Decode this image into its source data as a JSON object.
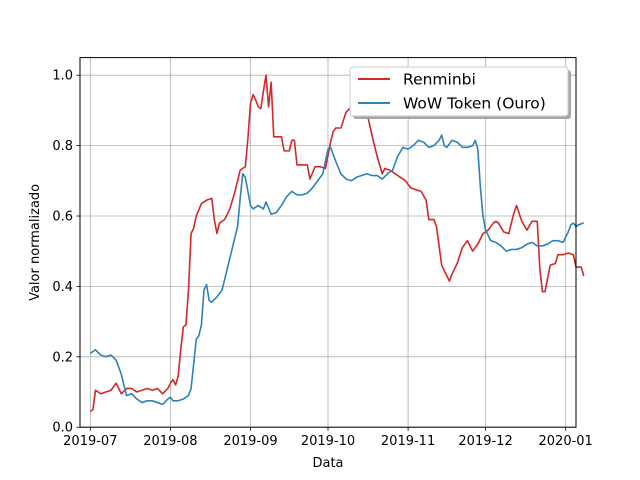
{
  "chart_data": {
    "type": "line",
    "title": "",
    "xlabel": "Data",
    "ylabel": "Valor normalizado",
    "x_range": [
      "2019-06-27",
      "2020-01-05"
    ],
    "ylim": [
      0.0,
      1.05
    ],
    "x_tick_labels": [
      "2019-07",
      "2019-08",
      "2019-09",
      "2019-10",
      "2019-11",
      "2019-12",
      "2020-01"
    ],
    "y_tick_labels": [
      "0.0",
      "0.2",
      "0.4",
      "0.6",
      "0.8",
      "1.0"
    ],
    "grid": true,
    "legend_position": "top-right",
    "series": [
      {
        "name": "Renminbi",
        "color": "#d62728",
        "points": [
          [
            "2019-07-01",
            0.045
          ],
          [
            "2019-07-02",
            0.05
          ],
          [
            "2019-07-03",
            0.105
          ],
          [
            "2019-07-05",
            0.095
          ],
          [
            "2019-07-07",
            0.1
          ],
          [
            "2019-07-09",
            0.105
          ],
          [
            "2019-07-11",
            0.125
          ],
          [
            "2019-07-13",
            0.095
          ],
          [
            "2019-07-15",
            0.11
          ],
          [
            "2019-07-17",
            0.11
          ],
          [
            "2019-07-19",
            0.1
          ],
          [
            "2019-07-21",
            0.105
          ],
          [
            "2019-07-23",
            0.11
          ],
          [
            "2019-07-25",
            0.105
          ],
          [
            "2019-07-27",
            0.11
          ],
          [
            "2019-07-29",
            0.095
          ],
          [
            "2019-07-31",
            0.11
          ],
          [
            "2019-08-01",
            0.125
          ],
          [
            "2019-08-02",
            0.135
          ],
          [
            "2019-08-03",
            0.12
          ],
          [
            "2019-08-04",
            0.145
          ],
          [
            "2019-08-05",
            0.22
          ],
          [
            "2019-08-06",
            0.285
          ],
          [
            "2019-08-07",
            0.29
          ],
          [
            "2019-08-08",
            0.39
          ],
          [
            "2019-08-09",
            0.55
          ],
          [
            "2019-08-10",
            0.565
          ],
          [
            "2019-08-11",
            0.6
          ],
          [
            "2019-08-13",
            0.635
          ],
          [
            "2019-08-15",
            0.645
          ],
          [
            "2019-08-17",
            0.65
          ],
          [
            "2019-08-18",
            0.59
          ],
          [
            "2019-08-19",
            0.55
          ],
          [
            "2019-08-20",
            0.58
          ],
          [
            "2019-08-22",
            0.59
          ],
          [
            "2019-08-24",
            0.62
          ],
          [
            "2019-08-26",
            0.67
          ],
          [
            "2019-08-28",
            0.73
          ],
          [
            "2019-08-30",
            0.74
          ],
          [
            "2019-08-31",
            0.82
          ],
          [
            "2019-09-01",
            0.92
          ],
          [
            "2019-09-02",
            0.945
          ],
          [
            "2019-09-03",
            0.93
          ],
          [
            "2019-09-04",
            0.91
          ],
          [
            "2019-09-05",
            0.905
          ],
          [
            "2019-09-06",
            0.955
          ],
          [
            "2019-09-07",
            1.0
          ],
          [
            "2019-09-08",
            0.91
          ],
          [
            "2019-09-09",
            0.98
          ],
          [
            "2019-09-10",
            0.825
          ],
          [
            "2019-09-13",
            0.825
          ],
          [
            "2019-09-14",
            0.785
          ],
          [
            "2019-09-16",
            0.785
          ],
          [
            "2019-09-17",
            0.815
          ],
          [
            "2019-09-18",
            0.815
          ],
          [
            "2019-09-19",
            0.745
          ],
          [
            "2019-09-23",
            0.745
          ],
          [
            "2019-09-24",
            0.705
          ],
          [
            "2019-09-26",
            0.74
          ],
          [
            "2019-09-28",
            0.74
          ],
          [
            "2019-09-30",
            0.735
          ],
          [
            "2019-10-02",
            0.81
          ],
          [
            "2019-10-03",
            0.84
          ],
          [
            "2019-10-04",
            0.85
          ],
          [
            "2019-10-06",
            0.85
          ],
          [
            "2019-10-08",
            0.895
          ],
          [
            "2019-10-10",
            0.91
          ],
          [
            "2019-10-12",
            0.91
          ],
          [
            "2019-10-14",
            0.91
          ],
          [
            "2019-10-16",
            0.895
          ],
          [
            "2019-10-18",
            0.83
          ],
          [
            "2019-10-20",
            0.77
          ],
          [
            "2019-10-22",
            0.72
          ],
          [
            "2019-10-23",
            0.735
          ],
          [
            "2019-10-25",
            0.73
          ],
          [
            "2019-10-27",
            0.72
          ],
          [
            "2019-10-29",
            0.71
          ],
          [
            "2019-10-31",
            0.7
          ],
          [
            "2019-11-02",
            0.68
          ],
          [
            "2019-11-04",
            0.675
          ],
          [
            "2019-11-06",
            0.67
          ],
          [
            "2019-11-08",
            0.645
          ],
          [
            "2019-11-09",
            0.59
          ],
          [
            "2019-11-11",
            0.59
          ],
          [
            "2019-11-12",
            0.57
          ],
          [
            "2019-11-14",
            0.46
          ],
          [
            "2019-11-16",
            0.43
          ],
          [
            "2019-11-17",
            0.415
          ],
          [
            "2019-11-18",
            0.435
          ],
          [
            "2019-11-20",
            0.465
          ],
          [
            "2019-11-22",
            0.51
          ],
          [
            "2019-11-24",
            0.53
          ],
          [
            "2019-11-26",
            0.5
          ],
          [
            "2019-11-28",
            0.52
          ],
          [
            "2019-11-30",
            0.55
          ],
          [
            "2019-12-02",
            0.56
          ],
          [
            "2019-12-04",
            0.58
          ],
          [
            "2019-12-05",
            0.585
          ],
          [
            "2019-12-06",
            0.58
          ],
          [
            "2019-12-08",
            0.555
          ],
          [
            "2019-12-10",
            0.55
          ],
          [
            "2019-12-12",
            0.61
          ],
          [
            "2019-12-13",
            0.63
          ],
          [
            "2019-12-15",
            0.585
          ],
          [
            "2019-12-17",
            0.56
          ],
          [
            "2019-12-19",
            0.585
          ],
          [
            "2019-12-21",
            0.585
          ],
          [
            "2019-12-22",
            0.45
          ],
          [
            "2019-12-23",
            0.385
          ],
          [
            "2019-12-24",
            0.385
          ],
          [
            "2019-12-26",
            0.46
          ],
          [
            "2019-12-28",
            0.465
          ],
          [
            "2019-12-29",
            0.49
          ],
          [
            "2019-12-31",
            0.49
          ],
          [
            "2020-01-02",
            0.495
          ],
          [
            "2020-01-04",
            0.49
          ],
          [
            "2020-01-05",
            0.455
          ],
          [
            "2020-01-07",
            0.455
          ],
          [
            "2020-01-08",
            0.43
          ]
        ]
      },
      {
        "name": "WoW Token (Ouro)",
        "color": "#2b83ba",
        "points": [
          [
            "2019-07-01",
            0.21
          ],
          [
            "2019-07-02",
            0.215
          ],
          [
            "2019-07-03",
            0.22
          ],
          [
            "2019-07-05",
            0.205
          ],
          [
            "2019-07-07",
            0.2
          ],
          [
            "2019-07-09",
            0.205
          ],
          [
            "2019-07-11",
            0.19
          ],
          [
            "2019-07-13",
            0.15
          ],
          [
            "2019-07-14",
            0.12
          ],
          [
            "2019-07-15",
            0.09
          ],
          [
            "2019-07-17",
            0.095
          ],
          [
            "2019-07-19",
            0.08
          ],
          [
            "2019-07-21",
            0.07
          ],
          [
            "2019-07-23",
            0.075
          ],
          [
            "2019-07-25",
            0.075
          ],
          [
            "2019-07-27",
            0.07
          ],
          [
            "2019-07-29",
            0.065
          ],
          [
            "2019-07-31",
            0.08
          ],
          [
            "2019-08-01",
            0.085
          ],
          [
            "2019-08-02",
            0.075
          ],
          [
            "2019-08-04",
            0.075
          ],
          [
            "2019-08-06",
            0.08
          ],
          [
            "2019-08-08",
            0.09
          ],
          [
            "2019-08-09",
            0.11
          ],
          [
            "2019-08-10",
            0.18
          ],
          [
            "2019-08-11",
            0.25
          ],
          [
            "2019-08-12",
            0.26
          ],
          [
            "2019-08-13",
            0.29
          ],
          [
            "2019-08-14",
            0.39
          ],
          [
            "2019-08-15",
            0.405
          ],
          [
            "2019-08-16",
            0.36
          ],
          [
            "2019-08-17",
            0.355
          ],
          [
            "2019-08-19",
            0.37
          ],
          [
            "2019-08-21",
            0.39
          ],
          [
            "2019-08-23",
            0.45
          ],
          [
            "2019-08-25",
            0.51
          ],
          [
            "2019-08-27",
            0.57
          ],
          [
            "2019-08-28",
            0.65
          ],
          [
            "2019-08-29",
            0.72
          ],
          [
            "2019-08-30",
            0.71
          ],
          [
            "2019-08-31",
            0.67
          ],
          [
            "2019-09-01",
            0.63
          ],
          [
            "2019-09-02",
            0.62
          ],
          [
            "2019-09-04",
            0.63
          ],
          [
            "2019-09-06",
            0.62
          ],
          [
            "2019-09-07",
            0.64
          ],
          [
            "2019-09-09",
            0.605
          ],
          [
            "2019-09-11",
            0.61
          ],
          [
            "2019-09-13",
            0.63
          ],
          [
            "2019-09-15",
            0.655
          ],
          [
            "2019-09-17",
            0.67
          ],
          [
            "2019-09-19",
            0.66
          ],
          [
            "2019-09-21",
            0.66
          ],
          [
            "2019-09-23",
            0.665
          ],
          [
            "2019-09-25",
            0.68
          ],
          [
            "2019-09-27",
            0.7
          ],
          [
            "2019-09-29",
            0.72
          ],
          [
            "2019-10-01",
            0.79
          ],
          [
            "2019-10-02",
            0.795
          ],
          [
            "2019-10-04",
            0.755
          ],
          [
            "2019-10-06",
            0.72
          ],
          [
            "2019-10-08",
            0.705
          ],
          [
            "2019-10-10",
            0.7
          ],
          [
            "2019-10-12",
            0.71
          ],
          [
            "2019-10-14",
            0.715
          ],
          [
            "2019-10-16",
            0.72
          ],
          [
            "2019-10-18",
            0.715
          ],
          [
            "2019-10-20",
            0.715
          ],
          [
            "2019-10-22",
            0.705
          ],
          [
            "2019-10-24",
            0.72
          ],
          [
            "2019-10-26",
            0.73
          ],
          [
            "2019-10-28",
            0.77
          ],
          [
            "2019-10-30",
            0.795
          ],
          [
            "2019-11-01",
            0.79
          ],
          [
            "2019-11-03",
            0.8
          ],
          [
            "2019-11-05",
            0.815
          ],
          [
            "2019-11-07",
            0.81
          ],
          [
            "2019-11-09",
            0.795
          ],
          [
            "2019-11-11",
            0.8
          ],
          [
            "2019-11-13",
            0.815
          ],
          [
            "2019-11-14",
            0.83
          ],
          [
            "2019-11-15",
            0.8
          ],
          [
            "2019-11-16",
            0.795
          ],
          [
            "2019-11-18",
            0.815
          ],
          [
            "2019-11-20",
            0.81
          ],
          [
            "2019-11-22",
            0.795
          ],
          [
            "2019-11-24",
            0.795
          ],
          [
            "2019-11-26",
            0.8
          ],
          [
            "2019-11-27",
            0.815
          ],
          [
            "2019-11-28",
            0.79
          ],
          [
            "2019-11-29",
            0.68
          ],
          [
            "2019-11-30",
            0.6
          ],
          [
            "2019-12-01",
            0.56
          ],
          [
            "2019-12-03",
            0.53
          ],
          [
            "2019-12-05",
            0.525
          ],
          [
            "2019-12-07",
            0.515
          ],
          [
            "2019-12-09",
            0.5
          ],
          [
            "2019-12-11",
            0.505
          ],
          [
            "2019-12-13",
            0.505
          ],
          [
            "2019-12-15",
            0.51
          ],
          [
            "2019-12-17",
            0.52
          ],
          [
            "2019-12-19",
            0.525
          ],
          [
            "2019-12-21",
            0.515
          ],
          [
            "2019-12-23",
            0.515
          ],
          [
            "2019-12-25",
            0.52
          ],
          [
            "2019-12-27",
            0.53
          ],
          [
            "2019-12-29",
            0.53
          ],
          [
            "2019-12-31",
            0.525
          ],
          [
            "2020-01-02",
            0.555
          ],
          [
            "2020-01-03",
            0.575
          ],
          [
            "2020-01-04",
            0.58
          ],
          [
            "2020-01-05",
            0.57
          ],
          [
            "2020-01-06",
            0.575
          ],
          [
            "2020-01-08",
            0.58
          ]
        ]
      }
    ]
  }
}
